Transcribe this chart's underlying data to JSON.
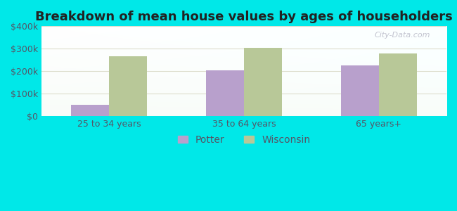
{
  "title": "Breakdown of mean house values by ages of householders",
  "categories": [
    "25 to 34 years",
    "35 to 64 years",
    "65 years+"
  ],
  "potter_values": [
    50000,
    205000,
    225000
  ],
  "wisconsin_values": [
    265000,
    305000,
    280000
  ],
  "potter_color": "#b8a0cc",
  "wisconsin_color": "#b8c898",
  "ylim": [
    0,
    400000
  ],
  "yticks": [
    0,
    100000,
    200000,
    300000,
    400000
  ],
  "ytick_labels": [
    "$0",
    "$100k",
    "$200k",
    "$300k",
    "$400k"
  ],
  "background_color": "#00e8e8",
  "bar_width": 0.28,
  "legend_labels": [
    "Potter",
    "Wisconsin"
  ],
  "title_fontsize": 13,
  "tick_fontsize": 9,
  "legend_fontsize": 10,
  "tick_color": "#555566",
  "grid_color": "#ddddcc",
  "watermark": "City-Data.com"
}
